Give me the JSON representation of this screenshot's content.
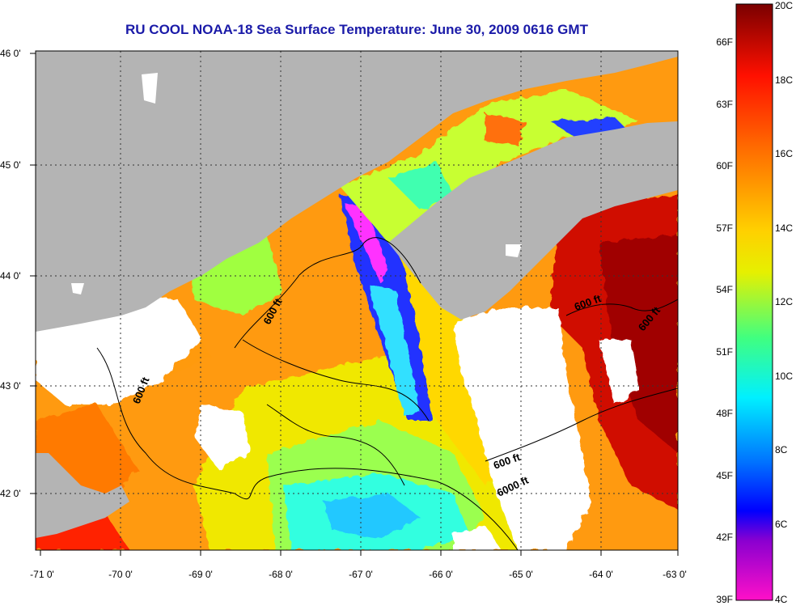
{
  "title": "RU COOL  NOAA-18  Sea Surface Temperature:  June 30, 2009 0616 GMT",
  "colors": {
    "land": "#b4b4b4",
    "cloud": "#ffffff",
    "title": "#1a1aa8",
    "frame": "#000000"
  },
  "map": {
    "lon_range": [
      -71,
      -63
    ],
    "lat_range": [
      41.5,
      46
    ],
    "x_ticks": [
      "-71 0'",
      "-70 0'",
      "-69 0'",
      "-68 0'",
      "-67 0'",
      "-66 0'",
      "-65 0'",
      "-64 0'",
      "-63 0'"
    ],
    "y_ticks": [
      "46 0'",
      "45 0'",
      "44 0'",
      "43 0'",
      "42 0'"
    ],
    "grid": "dotted"
  },
  "contour_labels": [
    "600 ft",
    "600 ft",
    "600 ft",
    "600 ft",
    "600 ft",
    "6000 ft"
  ],
  "colorbar": {
    "right_labels": [
      "20C",
      "18C",
      "16C",
      "14C",
      "12C",
      "10C",
      "8C",
      "6C",
      "4C"
    ],
    "left_labels": [
      "66F",
      "63F",
      "60F",
      "57F",
      "54F",
      "51F",
      "48F",
      "45F",
      "42F",
      "39F"
    ],
    "range_c": [
      4,
      20
    ]
  }
}
